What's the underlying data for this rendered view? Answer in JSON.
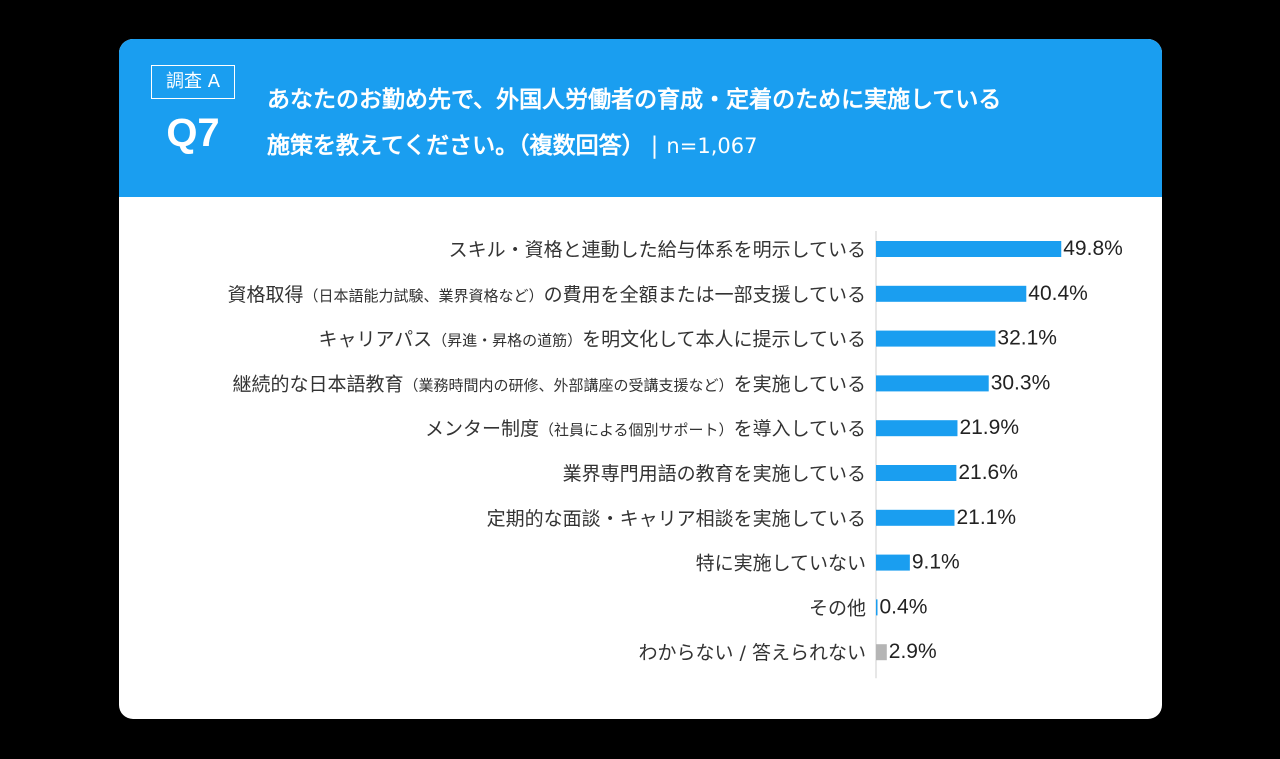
{
  "header": {
    "survey_label": "調査 A",
    "question_number": "Q7",
    "question_line1": "あなたのお勤め先で、外国人労働者の育成・定着のために実施している",
    "question_line2": "施策を教えてください。（複数回答）",
    "separator": "|",
    "sample_size": "n=1,067"
  },
  "colors": {
    "bar": "#1a9ef0",
    "bar_muted": "#b5b5b5",
    "header_bg": "#1a9ef0"
  },
  "chart_data": {
    "type": "bar",
    "orientation": "horizontal",
    "unit": "%",
    "xlim": [
      0,
      100
    ],
    "categories": [
      {
        "main": "スキル・資格と連動した給与体系を明示している",
        "paren": "",
        "tail": ""
      },
      {
        "main": "資格取得",
        "paren": "（日本語能力試験、業界資格など）",
        "tail": "の費用を全額または一部支援している"
      },
      {
        "main": "キャリアパス",
        "paren": "（昇進・昇格の道筋）",
        "tail": "を明文化して本人に提示している"
      },
      {
        "main": "継続的な日本語教育",
        "paren": "（業務時間内の研修、外部講座の受講支援など）",
        "tail": "を実施している"
      },
      {
        "main": "メンター制度",
        "paren": "（社員による個別サポート）",
        "tail": "を導入している"
      },
      {
        "main": "業界専門用語の教育を実施している",
        "paren": "",
        "tail": ""
      },
      {
        "main": "定期的な面談・キャリア相談を実施している",
        "paren": "",
        "tail": ""
      },
      {
        "main": "特に実施していない",
        "paren": "",
        "tail": ""
      },
      {
        "main": "その他",
        "paren": "",
        "tail": ""
      },
      {
        "main": "わからない / 答えられない",
        "paren": "",
        "tail": ""
      }
    ],
    "values": [
      49.8,
      40.4,
      32.1,
      30.3,
      21.9,
      21.6,
      21.1,
      9.1,
      0.4,
      2.9
    ],
    "value_labels": [
      "49.8%",
      "40.4%",
      "32.1%",
      "30.3%",
      "21.9%",
      "21.6%",
      "21.1%",
      "9.1%",
      "0.4%",
      "2.9%"
    ],
    "muted_index": 9
  }
}
